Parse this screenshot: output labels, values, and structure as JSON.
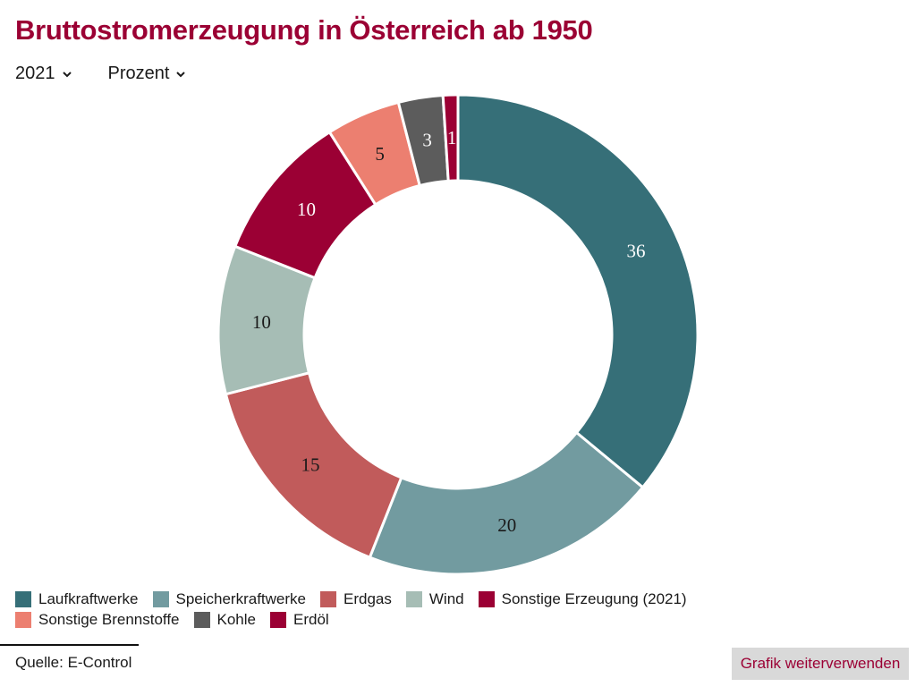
{
  "title": "Bruttostromerzeugung in Österreich ab 1950",
  "controls": {
    "year": "2021",
    "unit": "Prozent"
  },
  "source": "Quelle: E-Control",
  "reuse_label": "Grafik weiterverwenden",
  "chart_data": {
    "type": "pie",
    "title": "Bruttostromerzeugung in Österreich ab 1950",
    "donut": true,
    "legend_position": "bottom-left",
    "series": [
      {
        "name": "Laufkraftwerke",
        "value": 36,
        "color": "#366f78",
        "label_color": "#ffffff"
      },
      {
        "name": "Speicherkraftwerke",
        "value": 20,
        "color": "#729ba0",
        "label_color": "#1a1a1a"
      },
      {
        "name": "Erdgas",
        "value": 15,
        "color": "#c15b5b",
        "label_color": "#1a1a1a"
      },
      {
        "name": "Wind",
        "value": 10,
        "color": "#a6bdb5",
        "label_color": "#1a1a1a"
      },
      {
        "name": "Sonstige Erzeugung (2021)",
        "value": 10,
        "color": "#9b0034",
        "label_color": "#ffffff"
      },
      {
        "name": "Sonstige Brennstoffe",
        "value": 5,
        "color": "#ec7f70",
        "label_color": "#1a1a1a"
      },
      {
        "name": "Kohle",
        "value": 3,
        "color": "#5c5c5c",
        "label_color": "#ffffff"
      },
      {
        "name": "Erdöl",
        "value": 1,
        "color": "#9b0034",
        "label_color": "#ffffff"
      }
    ]
  }
}
